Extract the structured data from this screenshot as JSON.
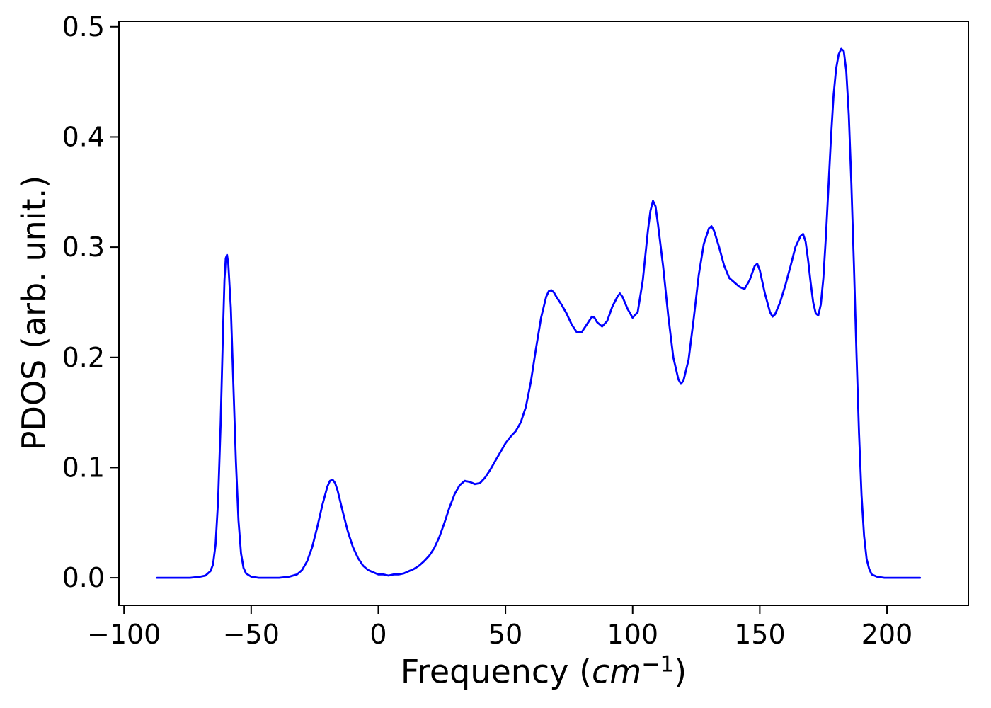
{
  "chart_data": {
    "type": "line",
    "title": "",
    "xlabel": {
      "prefix": "Frequency (",
      "math_italic": "cm",
      "superscript": "−1",
      "suffix": ")"
    },
    "ylabel": "PDOS (arb. unit.)",
    "xlim": [
      -102,
      232
    ],
    "ylim": [
      -0.025,
      0.505
    ],
    "grid": false,
    "legend": null,
    "background_color": "#ffffff",
    "axis_color": "#000000",
    "line_color": "#0000ff",
    "line_width": 2.8,
    "xticks": [
      {
        "value": -100,
        "label": "−100"
      },
      {
        "value": -50,
        "label": "−50"
      },
      {
        "value": 0,
        "label": "0"
      },
      {
        "value": 50,
        "label": "50"
      },
      {
        "value": 100,
        "label": "100"
      },
      {
        "value": 150,
        "label": "150"
      },
      {
        "value": 200,
        "label": "200"
      }
    ],
    "yticks": [
      {
        "value": 0.0,
        "label": "0.0"
      },
      {
        "value": 0.1,
        "label": "0.1"
      },
      {
        "value": 0.2,
        "label": "0.2"
      },
      {
        "value": 0.3,
        "label": "0.3"
      },
      {
        "value": 0.4,
        "label": "0.4"
      },
      {
        "value": 0.5,
        "label": "0.5"
      }
    ],
    "series": [
      {
        "name": "PDOS",
        "points": [
          [
            -87,
            0.0
          ],
          [
            -80,
            0.0
          ],
          [
            -74,
            0.0
          ],
          [
            -70,
            0.001
          ],
          [
            -68,
            0.002
          ],
          [
            -66,
            0.006
          ],
          [
            -65,
            0.012
          ],
          [
            -64,
            0.03
          ],
          [
            -63,
            0.07
          ],
          [
            -62,
            0.14
          ],
          [
            -61,
            0.23
          ],
          [
            -60.5,
            0.27
          ],
          [
            -60,
            0.29
          ],
          [
            -59.5,
            0.293
          ],
          [
            -59,
            0.285
          ],
          [
            -58,
            0.245
          ],
          [
            -57,
            0.175
          ],
          [
            -56,
            0.105
          ],
          [
            -55,
            0.052
          ],
          [
            -54,
            0.022
          ],
          [
            -53,
            0.009
          ],
          [
            -52,
            0.004
          ],
          [
            -50,
            0.001
          ],
          [
            -47,
            0.0
          ],
          [
            -43,
            0.0
          ],
          [
            -39,
            0.0
          ],
          [
            -35,
            0.001
          ],
          [
            -32,
            0.003
          ],
          [
            -30,
            0.007
          ],
          [
            -28,
            0.015
          ],
          [
            -26,
            0.028
          ],
          [
            -24,
            0.046
          ],
          [
            -22,
            0.066
          ],
          [
            -20,
            0.083
          ],
          [
            -19,
            0.088
          ],
          [
            -18,
            0.089
          ],
          [
            -17,
            0.086
          ],
          [
            -16,
            0.079
          ],
          [
            -14,
            0.06
          ],
          [
            -12,
            0.042
          ],
          [
            -10,
            0.028
          ],
          [
            -8,
            0.018
          ],
          [
            -6,
            0.011
          ],
          [
            -4,
            0.007
          ],
          [
            -2,
            0.005
          ],
          [
            0,
            0.003
          ],
          [
            2,
            0.003
          ],
          [
            4,
            0.002
          ],
          [
            6,
            0.003
          ],
          [
            8,
            0.003
          ],
          [
            10,
            0.004
          ],
          [
            12,
            0.006
          ],
          [
            14,
            0.008
          ],
          [
            16,
            0.011
          ],
          [
            18,
            0.015
          ],
          [
            20,
            0.02
          ],
          [
            22,
            0.027
          ],
          [
            24,
            0.037
          ],
          [
            26,
            0.05
          ],
          [
            28,
            0.064
          ],
          [
            30,
            0.076
          ],
          [
            32,
            0.084
          ],
          [
            34,
            0.088
          ],
          [
            36,
            0.087
          ],
          [
            38,
            0.085
          ],
          [
            40,
            0.086
          ],
          [
            42,
            0.091
          ],
          [
            44,
            0.098
          ],
          [
            46,
            0.106
          ],
          [
            48,
            0.114
          ],
          [
            50,
            0.122
          ],
          [
            52,
            0.128
          ],
          [
            54,
            0.133
          ],
          [
            56,
            0.141
          ],
          [
            58,
            0.155
          ],
          [
            60,
            0.178
          ],
          [
            62,
            0.208
          ],
          [
            64,
            0.236
          ],
          [
            66,
            0.255
          ],
          [
            67,
            0.26
          ],
          [
            68,
            0.261
          ],
          [
            69,
            0.259
          ],
          [
            70,
            0.255
          ],
          [
            72,
            0.248
          ],
          [
            74,
            0.24
          ],
          [
            76,
            0.23
          ],
          [
            78,
            0.223
          ],
          [
            80,
            0.223
          ],
          [
            82,
            0.23
          ],
          [
            84,
            0.237
          ],
          [
            85,
            0.236
          ],
          [
            86,
            0.232
          ],
          [
            88,
            0.228
          ],
          [
            90,
            0.233
          ],
          [
            92,
            0.246
          ],
          [
            94,
            0.255
          ],
          [
            95,
            0.258
          ],
          [
            96,
            0.255
          ],
          [
            98,
            0.244
          ],
          [
            100,
            0.236
          ],
          [
            102,
            0.241
          ],
          [
            104,
            0.27
          ],
          [
            106,
            0.315
          ],
          [
            107,
            0.333
          ],
          [
            108,
            0.342
          ],
          [
            109,
            0.337
          ],
          [
            110,
            0.32
          ],
          [
            112,
            0.282
          ],
          [
            114,
            0.238
          ],
          [
            116,
            0.2
          ],
          [
            118,
            0.18
          ],
          [
            119,
            0.176
          ],
          [
            120,
            0.179
          ],
          [
            122,
            0.198
          ],
          [
            124,
            0.235
          ],
          [
            126,
            0.275
          ],
          [
            128,
            0.303
          ],
          [
            130,
            0.317
          ],
          [
            131,
            0.319
          ],
          [
            132,
            0.315
          ],
          [
            134,
            0.3
          ],
          [
            136,
            0.283
          ],
          [
            138,
            0.272
          ],
          [
            140,
            0.268
          ],
          [
            142,
            0.264
          ],
          [
            144,
            0.262
          ],
          [
            146,
            0.27
          ],
          [
            148,
            0.283
          ],
          [
            149,
            0.285
          ],
          [
            150,
            0.279
          ],
          [
            152,
            0.258
          ],
          [
            154,
            0.241
          ],
          [
            155,
            0.237
          ],
          [
            156,
            0.239
          ],
          [
            158,
            0.25
          ],
          [
            160,
            0.265
          ],
          [
            162,
            0.282
          ],
          [
            164,
            0.3
          ],
          [
            166,
            0.31
          ],
          [
            167,
            0.312
          ],
          [
            168,
            0.305
          ],
          [
            169,
            0.288
          ],
          [
            170,
            0.268
          ],
          [
            171,
            0.25
          ],
          [
            172,
            0.24
          ],
          [
            173,
            0.238
          ],
          [
            174,
            0.248
          ],
          [
            175,
            0.272
          ],
          [
            176,
            0.31
          ],
          [
            177,
            0.355
          ],
          [
            178,
            0.4
          ],
          [
            179,
            0.438
          ],
          [
            180,
            0.462
          ],
          [
            181,
            0.475
          ],
          [
            182,
            0.48
          ],
          [
            183,
            0.478
          ],
          [
            184,
            0.46
          ],
          [
            185,
            0.42
          ],
          [
            186,
            0.358
          ],
          [
            187,
            0.285
          ],
          [
            188,
            0.205
          ],
          [
            189,
            0.132
          ],
          [
            190,
            0.075
          ],
          [
            191,
            0.038
          ],
          [
            192,
            0.017
          ],
          [
            193,
            0.008
          ],
          [
            194,
            0.003
          ],
          [
            196,
            0.001
          ],
          [
            199,
            0.0
          ],
          [
            203,
            0.0
          ],
          [
            208,
            0.0
          ],
          [
            213,
            0.0
          ]
        ]
      }
    ]
  }
}
